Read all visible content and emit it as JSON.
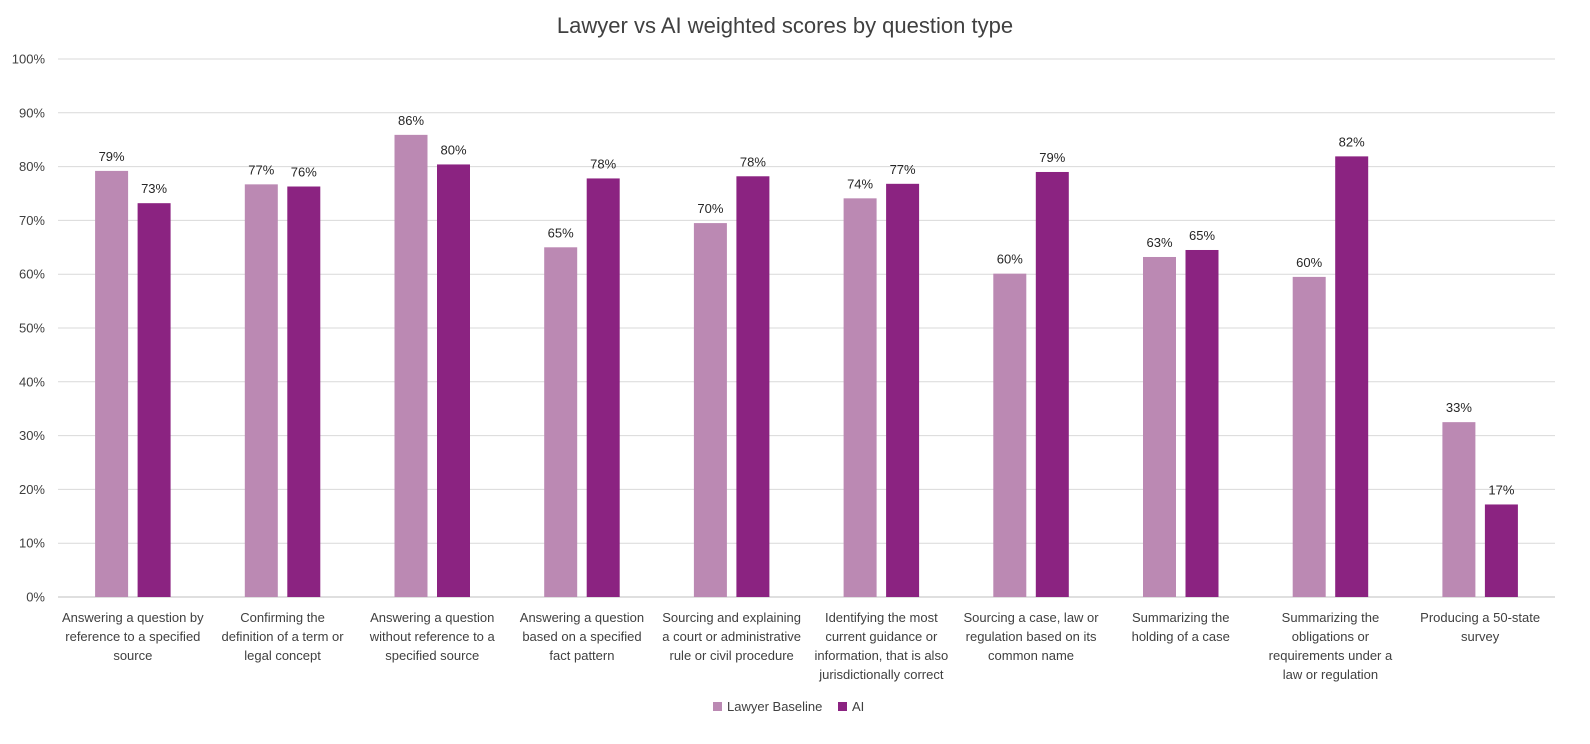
{
  "chart_data": {
    "type": "bar",
    "title": "Lawyer vs AI weighted scores by question type",
    "xlabel": "",
    "ylabel": "",
    "ylim": [
      0,
      100
    ],
    "y_tick_labels": [
      "0%",
      "10%",
      "20%",
      "30%",
      "40%",
      "50%",
      "60%",
      "70%",
      "80%",
      "90%",
      "100%"
    ],
    "grid": true,
    "legend_position": "bottom",
    "categories": [
      [
        "Answering a question by",
        "reference to a specified",
        "source"
      ],
      [
        "Confirming the",
        "definition of a term or",
        "legal concept"
      ],
      [
        "Answering a question",
        "without reference to a",
        "specified source"
      ],
      [
        "Answering a question",
        "based on a specified",
        "fact pattern"
      ],
      [
        "Sourcing and explaining",
        "a court or administrative",
        "rule or civil procedure"
      ],
      [
        "Identifying the most",
        "current guidance or",
        "information, that is also",
        "jurisdictionally correct"
      ],
      [
        "Sourcing a case, law or",
        "regulation based on its",
        "common name"
      ],
      [
        "Summarizing the",
        "holding of a case"
      ],
      [
        "Summarizing the",
        "obligations or",
        "requirements under a",
        "law or regulation"
      ],
      [
        "Producing a 50-state",
        "survey"
      ]
    ],
    "series": [
      {
        "name": "Lawyer Baseline",
        "color": "#bb89b3",
        "values": [
          79.2,
          76.7,
          85.9,
          65.0,
          69.5,
          74.1,
          60.1,
          63.2,
          59.5,
          32.5
        ],
        "labels": [
          "79%",
          "77%",
          "86%",
          "65%",
          "70%",
          "74%",
          "60%",
          "63%",
          "60%",
          "33%"
        ]
      },
      {
        "name": "AI",
        "color": "#8b2381",
        "values": [
          73.2,
          76.3,
          80.4,
          77.8,
          78.2,
          76.8,
          79.0,
          64.5,
          81.9,
          17.2
        ],
        "labels": [
          "73%",
          "76%",
          "80%",
          "78%",
          "78%",
          "77%",
          "79%",
          "65%",
          "82%",
          "17%"
        ]
      }
    ]
  }
}
